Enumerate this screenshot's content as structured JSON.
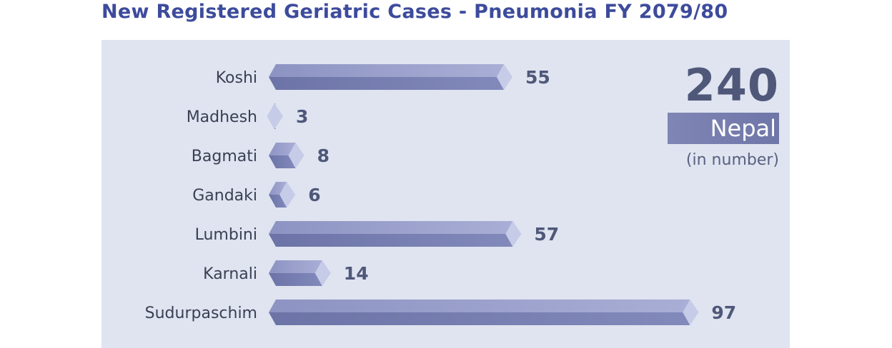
{
  "title": "New Registered Geriatric Cases - Pneumonia FY 2079/80",
  "total": {
    "value": "240",
    "label": "Nepal",
    "unit": "(in number)"
  },
  "colors": {
    "title": "#3d4b9c",
    "panel_bg": "#dfe4f0",
    "bar_top": "#9aa1cc",
    "bar_bottom": "#7077a8",
    "bar_tip": "#c6cbe8",
    "value_text": "#4f5879",
    "label_text": "#3a3f55"
  },
  "chart_data": {
    "type": "bar",
    "orientation": "horizontal",
    "categories": [
      "Koshi",
      "Madhesh",
      "Bagmati",
      "Gandaki",
      "Lumbini",
      "Karnali",
      "Sudurpaschim"
    ],
    "values": [
      55,
      3,
      8,
      6,
      57,
      14,
      97
    ],
    "data_labels": [
      "55",
      "3",
      "8",
      "6",
      "57",
      "14",
      "97"
    ],
    "title": "New Registered Geriatric Cases - Pneumonia FY 2079/80",
    "xlabel": "",
    "ylabel": "",
    "grid": false,
    "legend": "none"
  }
}
